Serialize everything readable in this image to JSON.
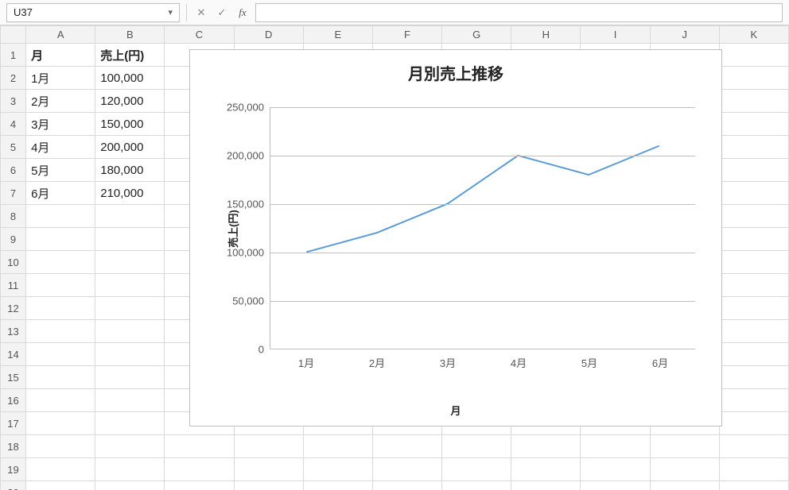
{
  "formula_bar": {
    "cell_ref": "U37",
    "cancel": "✕",
    "confirm": "✓",
    "fx": "fx",
    "formula_value": ""
  },
  "columns": [
    "A",
    "B",
    "C",
    "D",
    "E",
    "F",
    "G",
    "H",
    "I",
    "J",
    "K"
  ],
  "row_count": 20,
  "table": {
    "header_month": "月",
    "header_sales": "売上(円)",
    "rows": [
      {
        "month": "1月",
        "sales": "100,000"
      },
      {
        "month": "2月",
        "sales": "120,000"
      },
      {
        "month": "3月",
        "sales": "150,000"
      },
      {
        "month": "4月",
        "sales": "200,000"
      },
      {
        "month": "5月",
        "sales": "180,000"
      },
      {
        "month": "6月",
        "sales": "210,000"
      }
    ]
  },
  "chart": {
    "type": "line",
    "title": "月別売上推移",
    "xlabel": "月",
    "ylabel": "売上(円)",
    "categories": [
      "1月",
      "2月",
      "3月",
      "4月",
      "5月",
      "6月"
    ],
    "values": [
      100000,
      120000,
      150000,
      200000,
      180000,
      210000
    ],
    "ylim": [
      0,
      250000
    ],
    "ytick_step": 50000,
    "ytick_labels": [
      "0",
      "50,000",
      "100,000",
      "150,000",
      "200,000",
      "250,000"
    ],
    "line_color": "#5b9bd5",
    "line_width": 2,
    "grid_color": "#bfbfbf",
    "background_color": "#ffffff",
    "title_fontsize": 20,
    "tick_fontsize": 13
  }
}
